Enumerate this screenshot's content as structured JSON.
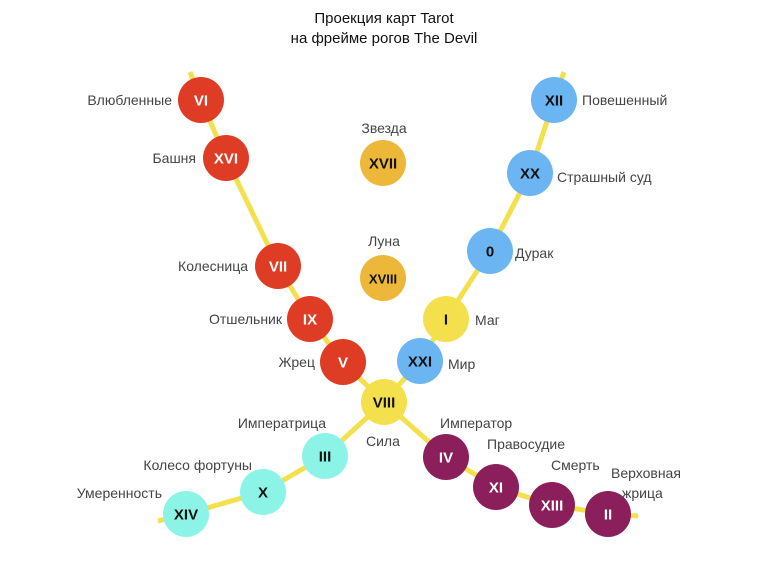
{
  "title": {
    "line1": "Проекция карт Tarot",
    "line2": "на фрейме рогов The Devil"
  },
  "colors": {
    "red": "#DE3C24",
    "blue": "#6AB5F2",
    "yellow": "#F4E04D",
    "gold": "#EDB83A",
    "cyan": "#8BF4E6",
    "purple": "#8A1F5B",
    "line": "#F4E04D",
    "label": "#444444"
  },
  "cards": [
    {
      "id": "vi",
      "numeral": "VI",
      "label": "Влюбленные",
      "color": "red"
    },
    {
      "id": "xvi",
      "numeral": "XVI",
      "label": "Башня",
      "color": "red"
    },
    {
      "id": "vii",
      "numeral": "VII",
      "label": "Колесница",
      "color": "red"
    },
    {
      "id": "ix",
      "numeral": "IX",
      "label": "Отшельник",
      "color": "red"
    },
    {
      "id": "v",
      "numeral": "V",
      "label": "Жрец",
      "color": "red"
    },
    {
      "id": "xii",
      "numeral": "XII",
      "label": "Повешенный",
      "color": "blue"
    },
    {
      "id": "xx",
      "numeral": "XX",
      "label": "Страшный суд",
      "color": "blue"
    },
    {
      "id": "zero",
      "numeral": "0",
      "label": "Дурак",
      "color": "blue"
    },
    {
      "id": "xxi",
      "numeral": "XXI",
      "label": "Мир",
      "color": "blue"
    },
    {
      "id": "i",
      "numeral": "I",
      "label": "Маг",
      "color": "yellow"
    },
    {
      "id": "viii",
      "numeral": "VIII",
      "label": "Сила",
      "color": "yellow"
    },
    {
      "id": "xvii",
      "numeral": "XVII",
      "label": "Звезда",
      "color": "gold"
    },
    {
      "id": "xviii",
      "numeral": "XVIII",
      "label": "Луна",
      "color": "gold"
    },
    {
      "id": "iii",
      "numeral": "III",
      "label": "Императрица",
      "color": "cyan"
    },
    {
      "id": "x",
      "numeral": "X",
      "label": "Колесо фортуны",
      "color": "cyan"
    },
    {
      "id": "xiv",
      "numeral": "XIV",
      "label": "Умеренность",
      "color": "cyan"
    },
    {
      "id": "iv",
      "numeral": "IV",
      "label": "Император",
      "color": "purple"
    },
    {
      "id": "xi",
      "numeral": "XI",
      "label": "Правосудие",
      "color": "purple"
    },
    {
      "id": "xiii",
      "numeral": "XIII",
      "label": "Смерть",
      "color": "purple"
    },
    {
      "id": "ii",
      "numeral": "II",
      "label": "Верховная жрица",
      "color": "purple"
    }
  ]
}
